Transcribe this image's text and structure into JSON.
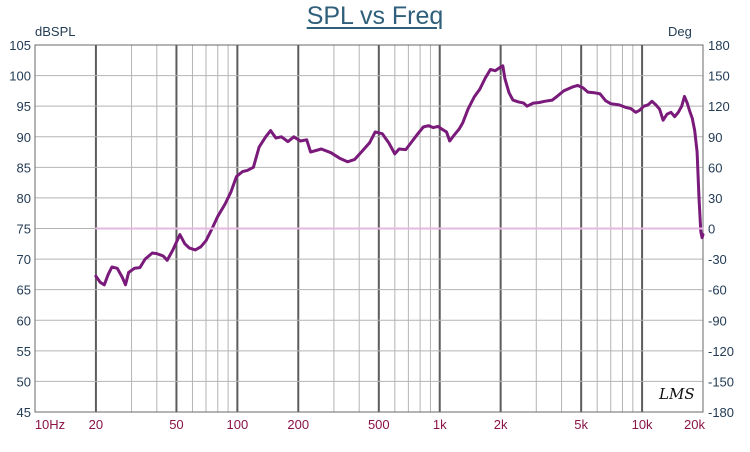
{
  "chart_data": {
    "type": "line",
    "title": "SPL vs Freq",
    "ylabel": "dBSPL",
    "y2label": "Deg",
    "xscale": "log",
    "xlim": [
      10,
      20000
    ],
    "ylim": [
      45,
      105
    ],
    "y2lim": [
      -180,
      180
    ],
    "grid": true,
    "x_tick_labels": [
      {
        "value": 10,
        "label": "10Hz"
      },
      {
        "value": 20,
        "label": "20"
      },
      {
        "value": 50,
        "label": "50"
      },
      {
        "value": 100,
        "label": "100"
      },
      {
        "value": 200,
        "label": "200"
      },
      {
        "value": 500,
        "label": "500"
      },
      {
        "value": 1000,
        "label": "1k"
      },
      {
        "value": 2000,
        "label": "2k"
      },
      {
        "value": 5000,
        "label": "5k"
      },
      {
        "value": 10000,
        "label": "10k"
      },
      {
        "value": 20000,
        "label": "20k"
      }
    ],
    "y_ticks": [
      45,
      50,
      55,
      60,
      65,
      70,
      75,
      80,
      85,
      90,
      95,
      100,
      105
    ],
    "y2_ticks": [
      -180,
      -150,
      -120,
      -90,
      -60,
      -30,
      0,
      30,
      60,
      90,
      120,
      150,
      180
    ],
    "series": [
      {
        "axis": "left",
        "color": "#7a1a7a",
        "points": [
          [
            20,
            67.2
          ],
          [
            21,
            66.2
          ],
          [
            22,
            65.8
          ],
          [
            23,
            67.5
          ],
          [
            24,
            68.7
          ],
          [
            25.5,
            68.5
          ],
          [
            27,
            67
          ],
          [
            28,
            65.8
          ],
          [
            29,
            67.8
          ],
          [
            31,
            68.5
          ],
          [
            33,
            68.6
          ],
          [
            35,
            70
          ],
          [
            38,
            71
          ],
          [
            40,
            70.9
          ],
          [
            43,
            70.5
          ],
          [
            45,
            69.8
          ],
          [
            48,
            71.5
          ],
          [
            52,
            74
          ],
          [
            55,
            72.5
          ],
          [
            58,
            71.8
          ],
          [
            62,
            71.5
          ],
          [
            66,
            72
          ],
          [
            70,
            73
          ],
          [
            75,
            75
          ],
          [
            80,
            77
          ],
          [
            87,
            79
          ],
          [
            93,
            81
          ],
          [
            99,
            83.5
          ],
          [
            106,
            84.3
          ],
          [
            112,
            84.5
          ],
          [
            120,
            85
          ],
          [
            128,
            88.3
          ],
          [
            138,
            90
          ],
          [
            146,
            91
          ],
          [
            155,
            89.8
          ],
          [
            165,
            90
          ],
          [
            178,
            89.2
          ],
          [
            190,
            90
          ],
          [
            205,
            89.3
          ],
          [
            220,
            89.5
          ],
          [
            230,
            87.5
          ],
          [
            260,
            88
          ],
          [
            290,
            87.4
          ],
          [
            320,
            86.5
          ],
          [
            350,
            85.9
          ],
          [
            380,
            86.3
          ],
          [
            410,
            87.5
          ],
          [
            450,
            89
          ],
          [
            480,
            90.8
          ],
          [
            520,
            90.5
          ],
          [
            560,
            89
          ],
          [
            600,
            87.2
          ],
          [
            630,
            88
          ],
          [
            680,
            87.9
          ],
          [
            720,
            89
          ],
          [
            780,
            90.5
          ],
          [
            830,
            91.6
          ],
          [
            880,
            91.8
          ],
          [
            930,
            91.5
          ],
          [
            980,
            91.7
          ],
          [
            1030,
            91.2
          ],
          [
            1080,
            90.8
          ],
          [
            1120,
            89.3
          ],
          [
            1180,
            90.3
          ],
          [
            1250,
            91.3
          ],
          [
            1300,
            92.3
          ],
          [
            1380,
            94.5
          ],
          [
            1480,
            96.5
          ],
          [
            1580,
            97.8
          ],
          [
            1680,
            99.6
          ],
          [
            1780,
            101
          ],
          [
            1880,
            100.8
          ],
          [
            1980,
            101.3
          ],
          [
            2050,
            101.6
          ],
          [
            2100,
            99.5
          ],
          [
            2200,
            97.2
          ],
          [
            2300,
            96
          ],
          [
            2450,
            95.7
          ],
          [
            2600,
            95.5
          ],
          [
            2700,
            95
          ],
          [
            2900,
            95.5
          ],
          [
            3100,
            95.6
          ],
          [
            3300,
            95.8
          ],
          [
            3600,
            96
          ],
          [
            3800,
            96.6
          ],
          [
            4100,
            97.5
          ],
          [
            4500,
            98.1
          ],
          [
            4800,
            98.4
          ],
          [
            5100,
            98
          ],
          [
            5400,
            97.3
          ],
          [
            5800,
            97.2
          ],
          [
            6200,
            97
          ],
          [
            6600,
            95.9
          ],
          [
            7000,
            95.4
          ],
          [
            7700,
            95.2
          ],
          [
            8300,
            94.8
          ],
          [
            8800,
            94.6
          ],
          [
            9300,
            94
          ],
          [
            9700,
            94.3
          ],
          [
            10200,
            95
          ],
          [
            10700,
            95.2
          ],
          [
            11200,
            95.8
          ],
          [
            11700,
            95.2
          ],
          [
            12200,
            94.5
          ],
          [
            12700,
            92.7
          ],
          [
            13300,
            93.7
          ],
          [
            13900,
            94
          ],
          [
            14500,
            93.3
          ],
          [
            15100,
            94
          ],
          [
            15700,
            95
          ],
          [
            16200,
            96.6
          ],
          [
            16700,
            95.5
          ],
          [
            17200,
            94.2
          ],
          [
            17700,
            93
          ],
          [
            18200,
            91
          ],
          [
            18700,
            87.5
          ],
          [
            19100,
            80
          ],
          [
            19500,
            74.5
          ],
          [
            19800,
            73.5
          ],
          [
            20000,
            74
          ]
        ]
      },
      {
        "axis": "right",
        "color": "#e6b8e0",
        "points": [
          [
            20,
            0
          ],
          [
            20000,
            0
          ]
        ]
      }
    ]
  },
  "watermark": "LMS"
}
